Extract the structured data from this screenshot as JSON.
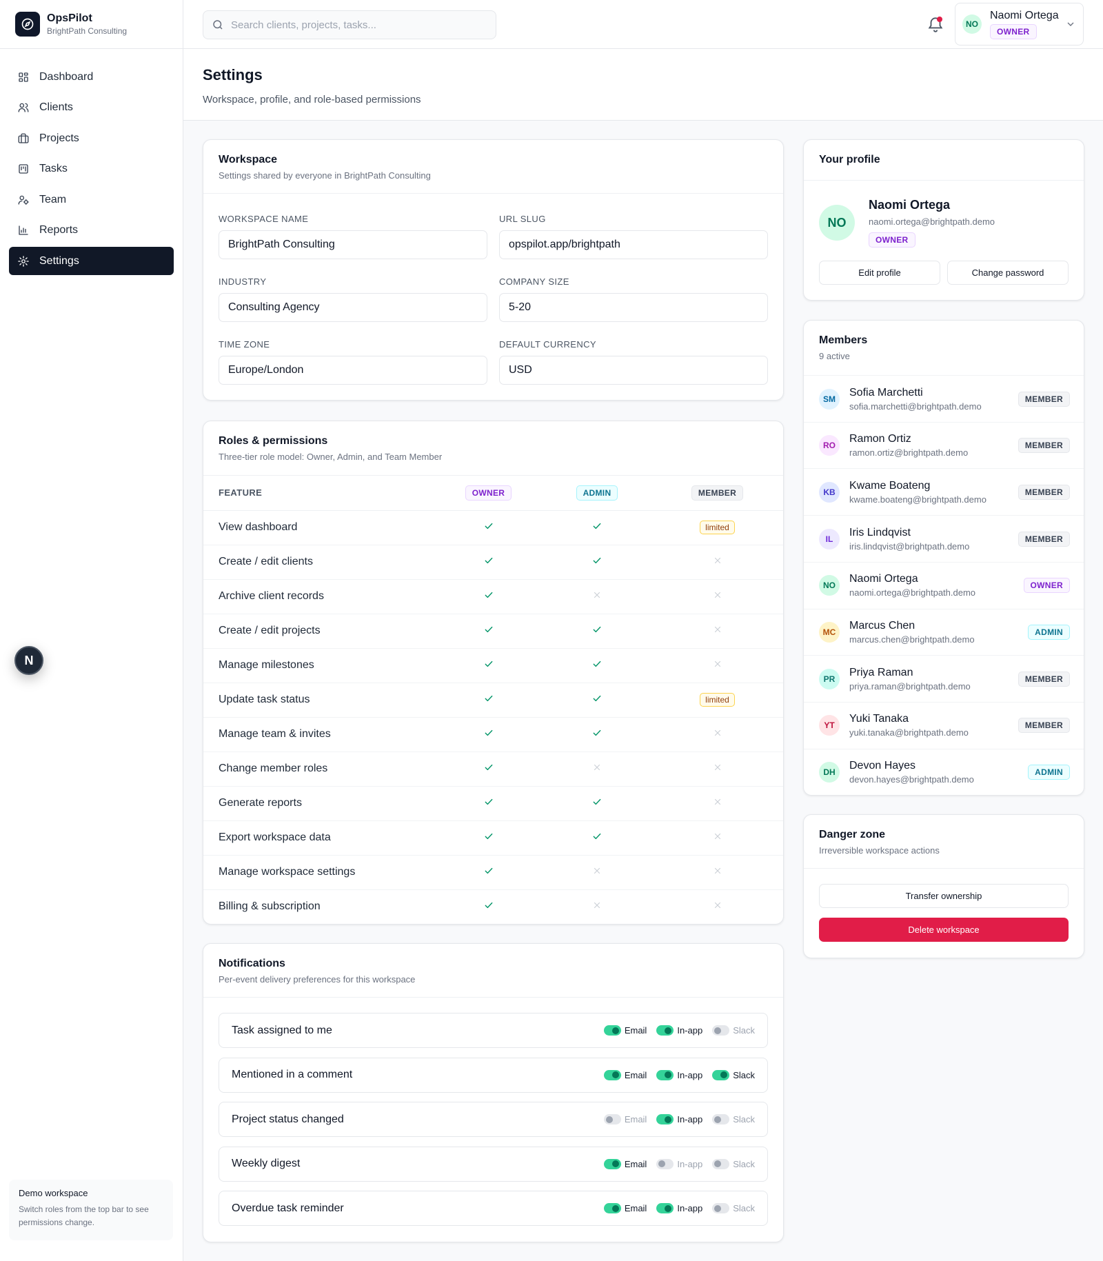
{
  "app": {
    "name": "OpsPilot",
    "org": "BrightPath Consulting"
  },
  "nav": [
    {
      "label": "Dashboard",
      "icon": "dashboard-icon"
    },
    {
      "label": "Clients",
      "icon": "users-icon"
    },
    {
      "label": "Projects",
      "icon": "briefcase-icon"
    },
    {
      "label": "Tasks",
      "icon": "kanban-icon"
    },
    {
      "label": "Team",
      "icon": "team-icon"
    },
    {
      "label": "Reports",
      "icon": "bar-chart-icon"
    },
    {
      "label": "Settings",
      "icon": "gear-icon",
      "active": true
    }
  ],
  "demo": {
    "title": "Demo workspace",
    "text": "Switch roles from the top bar to see permissions change."
  },
  "floating": {
    "letter": "N"
  },
  "search": {
    "placeholder": "Search clients, projects, tasks..."
  },
  "user": {
    "initials": "NO",
    "name": "Naomi Ortega",
    "role": "OWNER"
  },
  "page": {
    "title": "Settings",
    "subtitle": "Workspace, profile, and role-based permissions"
  },
  "workspace": {
    "title": "Workspace",
    "subtitle": "Settings shared by everyone in BrightPath Consulting",
    "fields": [
      {
        "label": "WORKSPACE NAME",
        "value": "BrightPath Consulting"
      },
      {
        "label": "URL SLUG",
        "value": "opspilot.app/brightpath"
      },
      {
        "label": "INDUSTRY",
        "value": "Consulting Agency"
      },
      {
        "label": "COMPANY SIZE",
        "value": "5-20"
      },
      {
        "label": "TIME ZONE",
        "value": "Europe/London"
      },
      {
        "label": "DEFAULT CURRENCY",
        "value": "USD"
      }
    ]
  },
  "roles": {
    "title": "Roles & permissions",
    "subtitle": "Three-tier role model: Owner, Admin, and Team Member",
    "columns": {
      "feature": "FEATURE",
      "owner": "OWNER",
      "admin": "ADMIN",
      "member": "MEMBER"
    },
    "limited_label": "limited",
    "rows": [
      {
        "feature": "View dashboard",
        "owner": "yes",
        "admin": "yes",
        "member": "limited"
      },
      {
        "feature": "Create / edit clients",
        "owner": "yes",
        "admin": "yes",
        "member": "no"
      },
      {
        "feature": "Archive client records",
        "owner": "yes",
        "admin": "no",
        "member": "no"
      },
      {
        "feature": "Create / edit projects",
        "owner": "yes",
        "admin": "yes",
        "member": "no"
      },
      {
        "feature": "Manage milestones",
        "owner": "yes",
        "admin": "yes",
        "member": "no"
      },
      {
        "feature": "Update task status",
        "owner": "yes",
        "admin": "yes",
        "member": "limited"
      },
      {
        "feature": "Manage team & invites",
        "owner": "yes",
        "admin": "yes",
        "member": "no"
      },
      {
        "feature": "Change member roles",
        "owner": "yes",
        "admin": "no",
        "member": "no"
      },
      {
        "feature": "Generate reports",
        "owner": "yes",
        "admin": "yes",
        "member": "no"
      },
      {
        "feature": "Export workspace data",
        "owner": "yes",
        "admin": "yes",
        "member": "no"
      },
      {
        "feature": "Manage workspace settings",
        "owner": "yes",
        "admin": "no",
        "member": "no"
      },
      {
        "feature": "Billing & subscription",
        "owner": "yes",
        "admin": "no",
        "member": "no"
      }
    ]
  },
  "notifications": {
    "title": "Notifications",
    "subtitle": "Per-event delivery preferences for this workspace",
    "channels": [
      "Email",
      "In-app",
      "Slack"
    ],
    "rows": [
      {
        "label": "Task assigned to me",
        "email": true,
        "inapp": true,
        "slack": false
      },
      {
        "label": "Mentioned in a comment",
        "email": true,
        "inapp": true,
        "slack": true
      },
      {
        "label": "Project status changed",
        "email": false,
        "inapp": true,
        "slack": false
      },
      {
        "label": "Weekly digest",
        "email": true,
        "inapp": false,
        "slack": false
      },
      {
        "label": "Overdue task reminder",
        "email": true,
        "inapp": true,
        "slack": false
      }
    ]
  },
  "profile": {
    "title": "Your profile",
    "initials": "NO",
    "name": "Naomi Ortega",
    "email": "naomi.ortega@brightpath.demo",
    "role": "OWNER",
    "edit_label": "Edit profile",
    "password_label": "Change password"
  },
  "members": {
    "title": "Members",
    "count": "9 active",
    "list": [
      {
        "initials": "SM",
        "name": "Sofia Marchetti",
        "email": "sofia.marchetti@brightpath.demo",
        "role": "MEMBER",
        "bg": "#e0f2fe",
        "fg": "#0369a1"
      },
      {
        "initials": "RO",
        "name": "Ramon Ortiz",
        "email": "ramon.ortiz@brightpath.demo",
        "role": "MEMBER",
        "bg": "#fae8ff",
        "fg": "#a21caf"
      },
      {
        "initials": "KB",
        "name": "Kwame Boateng",
        "email": "kwame.boateng@brightpath.demo",
        "role": "MEMBER",
        "bg": "#e0e7ff",
        "fg": "#4338ca"
      },
      {
        "initials": "IL",
        "name": "Iris Lindqvist",
        "email": "iris.lindqvist@brightpath.demo",
        "role": "MEMBER",
        "bg": "#ede9fe",
        "fg": "#6d28d9"
      },
      {
        "initials": "NO",
        "name": "Naomi Ortega",
        "email": "naomi.ortega@brightpath.demo",
        "role": "OWNER",
        "bg": "#d1fae5",
        "fg": "#047857"
      },
      {
        "initials": "MC",
        "name": "Marcus Chen",
        "email": "marcus.chen@brightpath.demo",
        "role": "ADMIN",
        "bg": "#fef3c7",
        "fg": "#b45309"
      },
      {
        "initials": "PR",
        "name": "Priya Raman",
        "email": "priya.raman@brightpath.demo",
        "role": "MEMBER",
        "bg": "#ccfbf1",
        "fg": "#0f766e"
      },
      {
        "initials": "YT",
        "name": "Yuki Tanaka",
        "email": "yuki.tanaka@brightpath.demo",
        "role": "MEMBER",
        "bg": "#ffe4e6",
        "fg": "#be123c"
      },
      {
        "initials": "DH",
        "name": "Devon Hayes",
        "email": "devon.hayes@brightpath.demo",
        "role": "ADMIN",
        "bg": "#d1fae5",
        "fg": "#047857"
      }
    ]
  },
  "danger": {
    "title": "Danger zone",
    "subtitle": "Irreversible workspace actions",
    "transfer_label": "Transfer ownership",
    "delete_label": "Delete workspace",
    "delete_color": "#e11d48"
  }
}
